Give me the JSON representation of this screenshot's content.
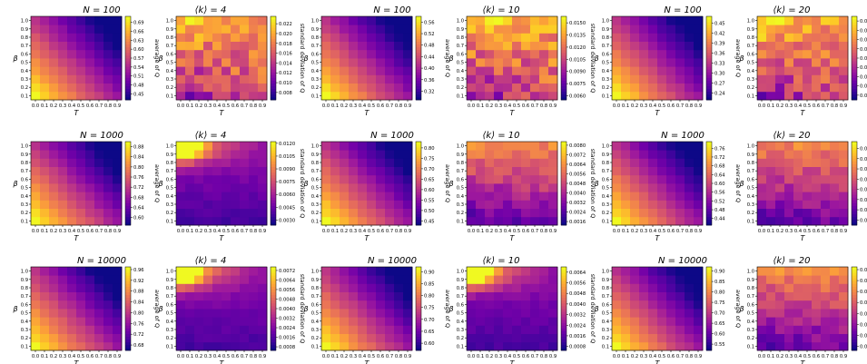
{
  "figure": {
    "xlabel": "T",
    "ylabel": "β",
    "mean_label": "average of Q",
    "std_label": "standard deviation of Q",
    "k_prefix": "⟨k⟩ = ",
    "n_prefix": "N = ",
    "colormap": {
      "name": "plasma",
      "stops": [
        "#0d0887",
        "#46039f",
        "#7201a8",
        "#9c179e",
        "#bd3786",
        "#d8576b",
        "#ed7953",
        "#fb9f3a",
        "#fdca26",
        "#f0f921"
      ]
    }
  },
  "chart_data": [
    {
      "type": "heatmap",
      "title_prefix": "N = ",
      "title_value": "100",
      "colorbar_label": "average of Q",
      "x_ticks": [
        "0.0",
        "0.1",
        "0.2",
        "0.3",
        "0.4",
        "0.5",
        "0.6",
        "0.7",
        "0.8",
        "0.9"
      ],
      "y_ticks": [
        "0.1",
        "0.2",
        "0.3",
        "0.4",
        "0.5",
        "0.6",
        "0.7",
        "0.8",
        "0.9",
        "1.0"
      ],
      "colorbar_ticks": [
        "0.45",
        "0.48",
        "0.51",
        "0.54",
        "0.57",
        "0.60",
        "0.63",
        "0.66",
        "0.69"
      ],
      "pattern": "mean",
      "vmin": 0.43,
      "vmax": 0.71,
      "seed": 11
    },
    {
      "type": "heatmap",
      "title_prefix": "⟨k⟩ = ",
      "title_value": "4",
      "colorbar_label": "standard deviation of Q",
      "x_ticks": [
        "0.0",
        "0.1",
        "0.2",
        "0.3",
        "0.4",
        "0.5",
        "0.6",
        "0.7",
        "0.8",
        "0.9"
      ],
      "y_ticks": [
        "0.1",
        "0.2",
        "0.3",
        "0.4",
        "0.5",
        "0.6",
        "0.7",
        "0.8",
        "0.9",
        "1.0"
      ],
      "colorbar_ticks": [
        "0.008",
        "0.010",
        "0.012",
        "0.014",
        "0.016",
        "0.018",
        "0.020",
        "0.022"
      ],
      "pattern": "std_noisy",
      "vmin": 0.0065,
      "vmax": 0.0235,
      "seed": 12
    },
    {
      "type": "heatmap",
      "title_prefix": "N = ",
      "title_value": "100",
      "colorbar_label": "average of Q",
      "x_ticks": [
        "0.0",
        "0.1",
        "0.2",
        "0.3",
        "0.4",
        "0.5",
        "0.6",
        "0.7",
        "0.8",
        "0.9"
      ],
      "y_ticks": [
        "0.1",
        "0.2",
        "0.3",
        "0.4",
        "0.5",
        "0.6",
        "0.7",
        "0.8",
        "0.9",
        "1.0"
      ],
      "colorbar_ticks": [
        "0.32",
        "0.36",
        "0.40",
        "0.44",
        "0.48",
        "0.52",
        "0.56"
      ],
      "pattern": "mean",
      "vmin": 0.29,
      "vmax": 0.58,
      "seed": 13
    },
    {
      "type": "heatmap",
      "title_prefix": "⟨k⟩ = ",
      "title_value": "10",
      "colorbar_label": "standard deviation of Q",
      "x_ticks": [
        "0.0",
        "0.1",
        "0.2",
        "0.3",
        "0.4",
        "0.5",
        "0.6",
        "0.7",
        "0.8",
        "0.9"
      ],
      "y_ticks": [
        "0.1",
        "0.2",
        "0.3",
        "0.4",
        "0.5",
        "0.6",
        "0.7",
        "0.8",
        "0.9",
        "1.0"
      ],
      "colorbar_ticks": [
        "0.0060",
        "0.0075",
        "0.0090",
        "0.0105",
        "0.0120",
        "0.0135",
        "0.0150"
      ],
      "pattern": "std_noisy",
      "vmin": 0.0055,
      "vmax": 0.0158,
      "seed": 14
    },
    {
      "type": "heatmap",
      "title_prefix": "N = ",
      "title_value": "100",
      "colorbar_label": "average of Q",
      "x_ticks": [
        "0.0",
        "0.1",
        "0.2",
        "0.3",
        "0.4",
        "0.5",
        "0.6",
        "0.7",
        "0.8",
        "0.9"
      ],
      "y_ticks": [
        "0.1",
        "0.2",
        "0.3",
        "0.4",
        "0.5",
        "0.6",
        "0.7",
        "0.8",
        "0.9",
        "1.0"
      ],
      "colorbar_ticks": [
        "0.24",
        "0.27",
        "0.30",
        "0.33",
        "0.36",
        "0.39",
        "0.42",
        "0.45"
      ],
      "pattern": "mean",
      "vmin": 0.22,
      "vmax": 0.47,
      "seed": 15
    },
    {
      "type": "heatmap",
      "title_prefix": "⟨k⟩ = ",
      "title_value": "20",
      "colorbar_label": "standard deviation of Q",
      "x_ticks": [
        "0.0",
        "0.1",
        "0.2",
        "0.3",
        "0.4",
        "0.5",
        "0.6",
        "0.7",
        "0.8",
        "0.9"
      ],
      "y_ticks": [
        "0.1",
        "0.2",
        "0.3",
        "0.4",
        "0.5",
        "0.6",
        "0.7",
        "0.8",
        "0.9",
        "1.0"
      ],
      "colorbar_ticks": [
        "0.0054",
        "0.0060",
        "0.0066",
        "0.0072",
        "0.0078",
        "0.0084",
        "0.0090",
        "0.0096",
        "0.0102"
      ],
      "pattern": "std_noisy",
      "vmin": 0.0051,
      "vmax": 0.0105,
      "seed": 16
    },
    {
      "type": "heatmap",
      "title_prefix": "N = ",
      "title_value": "1000",
      "colorbar_label": "average of Q",
      "x_ticks": [
        "0.0",
        "0.1",
        "0.2",
        "0.3",
        "0.4",
        "0.5",
        "0.6",
        "0.7",
        "0.8",
        "0.9"
      ],
      "y_ticks": [
        "0.1",
        "0.2",
        "0.3",
        "0.4",
        "0.5",
        "0.6",
        "0.7",
        "0.8",
        "0.9",
        "1.0"
      ],
      "colorbar_ticks": [
        "0.60",
        "0.64",
        "0.68",
        "0.72",
        "0.76",
        "0.80",
        "0.84",
        "0.88"
      ],
      "pattern": "mean",
      "vmin": 0.57,
      "vmax": 0.9,
      "seed": 21
    },
    {
      "type": "heatmap",
      "title_prefix": "⟨k⟩ = ",
      "title_value": "4",
      "colorbar_label": "standard deviation of Q",
      "x_ticks": [
        "0.0",
        "0.1",
        "0.2",
        "0.3",
        "0.4",
        "0.5",
        "0.6",
        "0.7",
        "0.8",
        "0.9"
      ],
      "y_ticks": [
        "0.1",
        "0.2",
        "0.3",
        "0.4",
        "0.5",
        "0.6",
        "0.7",
        "0.8",
        "0.9",
        "1.0"
      ],
      "colorbar_ticks": [
        "0.0030",
        "0.0045",
        "0.0060",
        "0.0075",
        "0.0090",
        "0.0105",
        "0.0120"
      ],
      "pattern": "std_corner",
      "vmin": 0.0024,
      "vmax": 0.0122,
      "seed": 22
    },
    {
      "type": "heatmap",
      "title_prefix": "N = ",
      "title_value": "1000",
      "colorbar_label": "average of Q",
      "x_ticks": [
        "0.0",
        "0.1",
        "0.2",
        "0.3",
        "0.4",
        "0.5",
        "0.6",
        "0.7",
        "0.8",
        "0.9"
      ],
      "y_ticks": [
        "0.1",
        "0.2",
        "0.3",
        "0.4",
        "0.5",
        "0.6",
        "0.7",
        "0.8",
        "0.9",
        "1.0"
      ],
      "colorbar_ticks": [
        "0.45",
        "0.50",
        "0.55",
        "0.60",
        "0.65",
        "0.70",
        "0.75",
        "0.80"
      ],
      "pattern": "mean",
      "vmin": 0.43,
      "vmax": 0.83,
      "seed": 23
    },
    {
      "type": "heatmap",
      "title_prefix": "⟨k⟩ = ",
      "title_value": "10",
      "colorbar_label": "standard deviation of Q",
      "x_ticks": [
        "0.0",
        "0.1",
        "0.2",
        "0.3",
        "0.4",
        "0.5",
        "0.6",
        "0.7",
        "0.8",
        "0.9"
      ],
      "y_ticks": [
        "0.1",
        "0.2",
        "0.3",
        "0.4",
        "0.5",
        "0.6",
        "0.7",
        "0.8",
        "0.9",
        "1.0"
      ],
      "colorbar_ticks": [
        "0.0016",
        "0.0024",
        "0.0032",
        "0.0040",
        "0.0048",
        "0.0056",
        "0.0064",
        "0.0072",
        "0.0080"
      ],
      "pattern": "std_soft",
      "vmin": 0.0013,
      "vmax": 0.0083,
      "seed": 24
    },
    {
      "type": "heatmap",
      "title_prefix": "N = ",
      "title_value": "1000",
      "colorbar_label": "average of Q",
      "x_ticks": [
        "0.0",
        "0.1",
        "0.2",
        "0.3",
        "0.4",
        "0.5",
        "0.6",
        "0.7",
        "0.8",
        "0.9"
      ],
      "y_ticks": [
        "0.1",
        "0.2",
        "0.3",
        "0.4",
        "0.5",
        "0.6",
        "0.7",
        "0.8",
        "0.9",
        "1.0"
      ],
      "colorbar_ticks": [
        "0.44",
        "0.48",
        "0.52",
        "0.56",
        "0.60",
        "0.64",
        "0.68",
        "0.72",
        "0.76"
      ],
      "pattern": "mean",
      "vmin": 0.41,
      "vmax": 0.79,
      "seed": 25
    },
    {
      "type": "heatmap",
      "title_prefix": "⟨k⟩ = ",
      "title_value": "20",
      "colorbar_label": "standard deviation of Q",
      "x_ticks": [
        "0.0",
        "0.1",
        "0.2",
        "0.3",
        "0.4",
        "0.5",
        "0.6",
        "0.7",
        "0.8",
        "0.9"
      ],
      "y_ticks": [
        "0.1",
        "0.2",
        "0.3",
        "0.4",
        "0.5",
        "0.6",
        "0.7",
        "0.8",
        "0.9",
        "1.0"
      ],
      "colorbar_ticks": [
        "0.0018",
        "0.0024",
        "0.0030",
        "0.0036",
        "0.0042",
        "0.0048",
        "0.0054",
        "0.0060"
      ],
      "pattern": "std_soft",
      "vmin": 0.0015,
      "vmax": 0.0064,
      "seed": 26
    },
    {
      "type": "heatmap",
      "title_prefix": "N = ",
      "title_value": "10000",
      "colorbar_label": "average of Q",
      "x_ticks": [
        "0.0",
        "0.1",
        "0.2",
        "0.3",
        "0.4",
        "0.5",
        "0.6",
        "0.7",
        "0.8",
        "0.9"
      ],
      "y_ticks": [
        "0.1",
        "0.2",
        "0.3",
        "0.4",
        "0.5",
        "0.6",
        "0.7",
        "0.8",
        "0.9",
        "1.0"
      ],
      "colorbar_ticks": [
        "0.68",
        "0.72",
        "0.76",
        "0.80",
        "0.84",
        "0.88",
        "0.92",
        "0.96"
      ],
      "pattern": "mean",
      "vmin": 0.66,
      "vmax": 0.97,
      "seed": 31
    },
    {
      "type": "heatmap",
      "title_prefix": "⟨k⟩ = ",
      "title_value": "4",
      "colorbar_label": "standard deviation of Q",
      "x_ticks": [
        "0.0",
        "0.1",
        "0.2",
        "0.3",
        "0.4",
        "0.5",
        "0.6",
        "0.7",
        "0.8",
        "0.9"
      ],
      "y_ticks": [
        "0.1",
        "0.2",
        "0.3",
        "0.4",
        "0.5",
        "0.6",
        "0.7",
        "0.8",
        "0.9",
        "1.0"
      ],
      "colorbar_ticks": [
        "0.0008",
        "0.0016",
        "0.0024",
        "0.0032",
        "0.0040",
        "0.0048",
        "0.0056",
        "0.0064",
        "0.0072"
      ],
      "pattern": "std_corner",
      "vmin": 0.0005,
      "vmax": 0.0075,
      "seed": 32
    },
    {
      "type": "heatmap",
      "title_prefix": "N = ",
      "title_value": "10000",
      "colorbar_label": "average of Q",
      "x_ticks": [
        "0.0",
        "0.1",
        "0.2",
        "0.3",
        "0.4",
        "0.5",
        "0.6",
        "0.7",
        "0.8",
        "0.9"
      ],
      "y_ticks": [
        "0.1",
        "0.2",
        "0.3",
        "0.4",
        "0.5",
        "0.6",
        "0.7",
        "0.8",
        "0.9",
        "1.0"
      ],
      "colorbar_ticks": [
        "0.60",
        "0.65",
        "0.70",
        "0.75",
        "0.80",
        "0.85",
        "0.90"
      ],
      "pattern": "mean",
      "vmin": 0.57,
      "vmax": 0.92,
      "seed": 33
    },
    {
      "type": "heatmap",
      "title_prefix": "⟨k⟩ = ",
      "title_value": "10",
      "colorbar_label": "standard deviation of Q",
      "x_ticks": [
        "0.0",
        "0.1",
        "0.2",
        "0.3",
        "0.4",
        "0.5",
        "0.6",
        "0.7",
        "0.8",
        "0.9"
      ],
      "y_ticks": [
        "0.1",
        "0.2",
        "0.3",
        "0.4",
        "0.5",
        "0.6",
        "0.7",
        "0.8",
        "0.9",
        "1.0"
      ],
      "colorbar_ticks": [
        "0.0008",
        "0.0016",
        "0.0024",
        "0.0032",
        "0.0040",
        "0.0048",
        "0.0056",
        "0.0064"
      ],
      "pattern": "std_corner",
      "vmin": 0.0005,
      "vmax": 0.0068,
      "seed": 34
    },
    {
      "type": "heatmap",
      "title_prefix": "N = ",
      "title_value": "10000",
      "colorbar_label": "average of Q",
      "x_ticks": [
        "0.0",
        "0.1",
        "0.2",
        "0.3",
        "0.4",
        "0.5",
        "0.6",
        "0.7",
        "0.8",
        "0.9"
      ],
      "y_ticks": [
        "0.1",
        "0.2",
        "0.3",
        "0.4",
        "0.5",
        "0.6",
        "0.7",
        "0.8",
        "0.9",
        "1.0"
      ],
      "colorbar_ticks": [
        "0.55",
        "0.60",
        "0.65",
        "0.70",
        "0.75",
        "0.80",
        "0.85",
        "0.90"
      ],
      "pattern": "mean",
      "vmin": 0.52,
      "vmax": 0.92,
      "seed": 35
    },
    {
      "type": "heatmap",
      "title_prefix": "⟨k⟩ = ",
      "title_value": "20",
      "colorbar_label": "standard deviation of Q",
      "x_ticks": [
        "0.0",
        "0.1",
        "0.2",
        "0.3",
        "0.4",
        "0.5",
        "0.6",
        "0.7",
        "0.8",
        "0.9"
      ],
      "y_ticks": [
        "0.1",
        "0.2",
        "0.3",
        "0.4",
        "0.5",
        "0.6",
        "0.7",
        "0.8",
        "0.9",
        "1.0"
      ],
      "colorbar_ticks": [
        "0.0008",
        "0.0016",
        "0.0024",
        "0.0032",
        "0.0040",
        "0.0048",
        "0.0056",
        "0.0064"
      ],
      "pattern": "std_soft",
      "vmin": 0.0005,
      "vmax": 0.0066,
      "seed": 36
    }
  ]
}
